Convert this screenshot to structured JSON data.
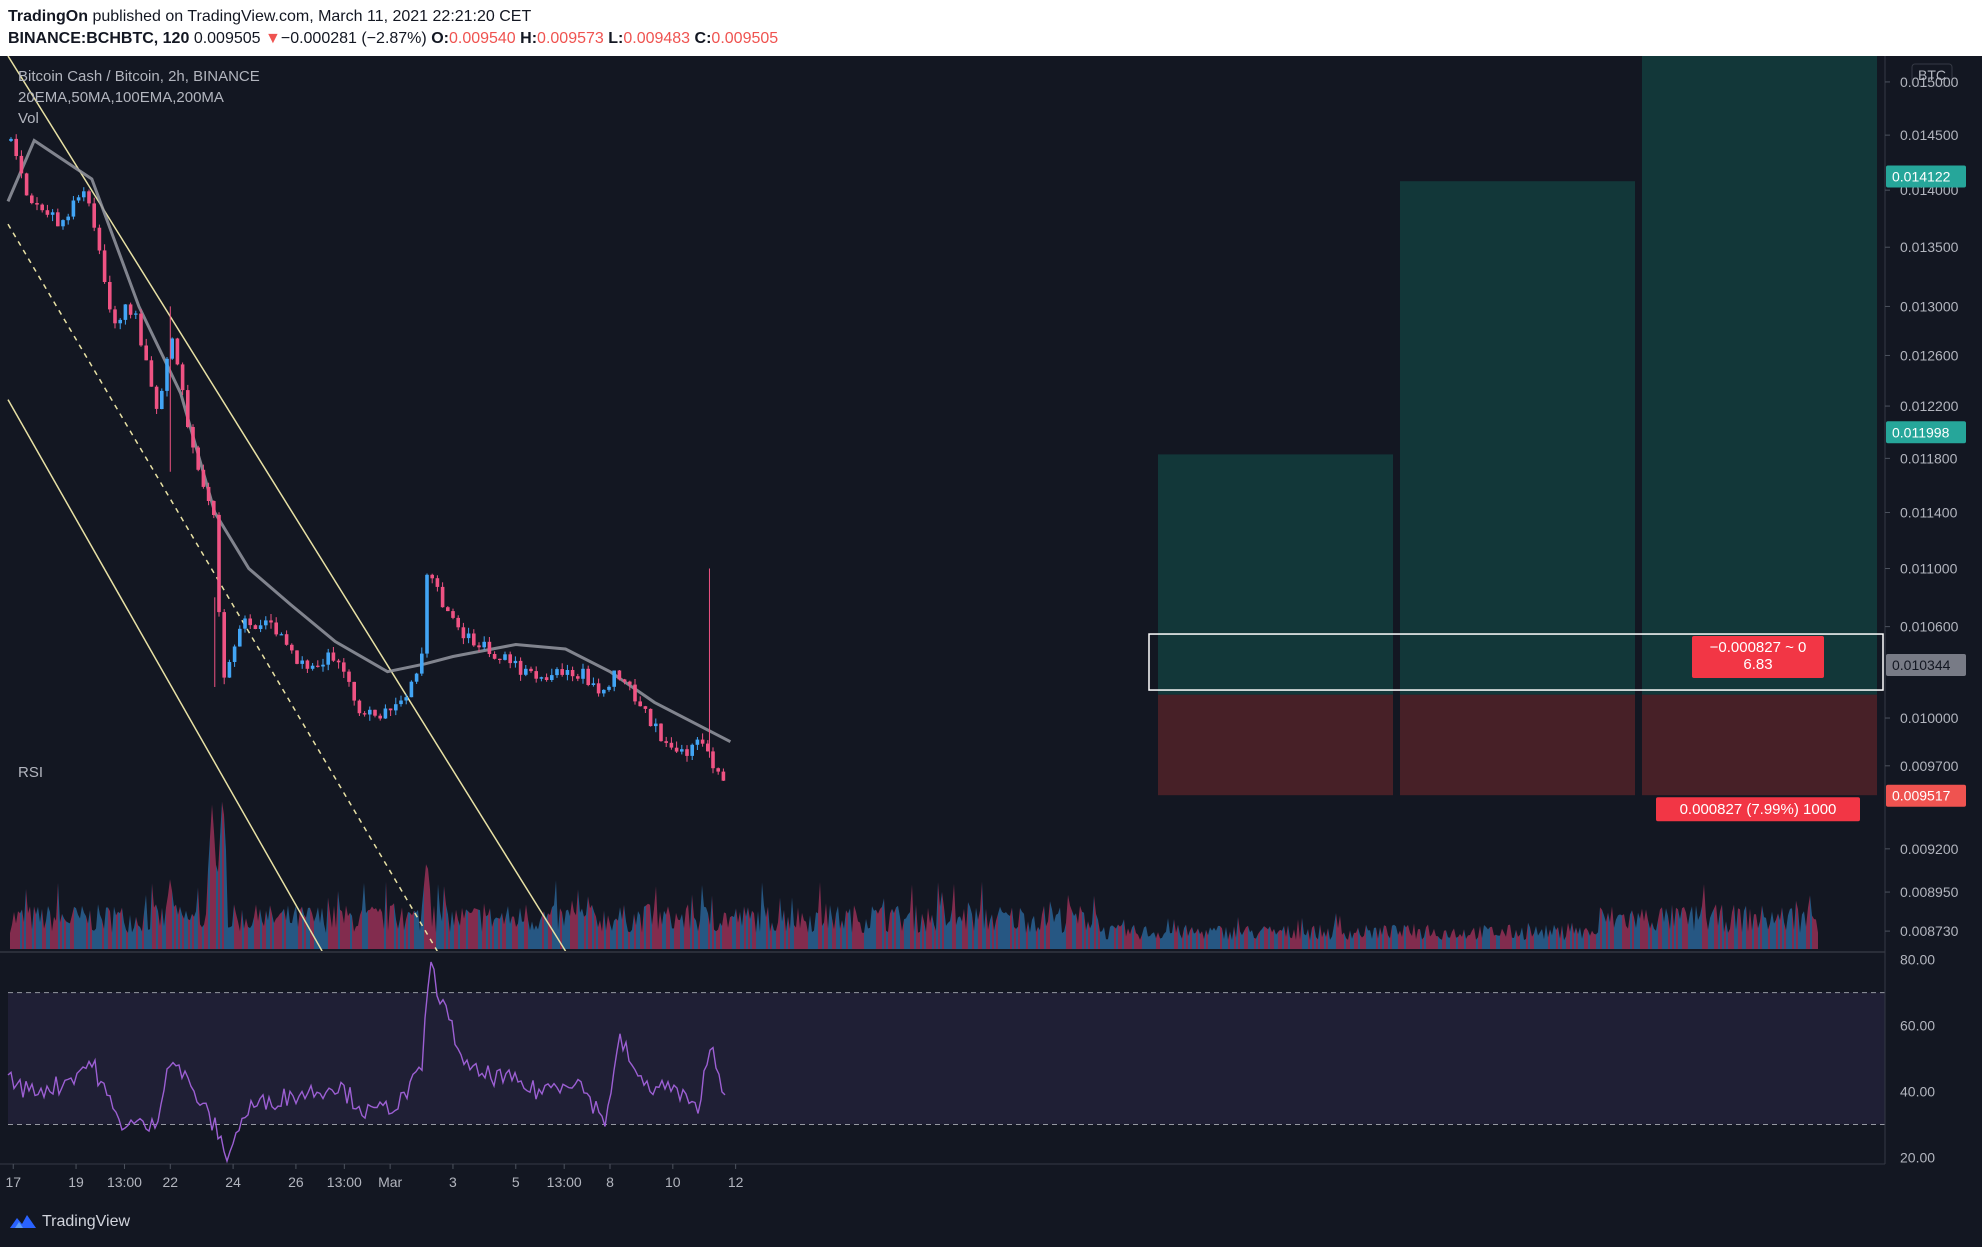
{
  "header": {
    "publisher": "TradingOn",
    "published_text": "published on TradingView.com, March 11, 2021 22:21:20 CET",
    "symbol": "BINANCE:BCHBTC, 120",
    "last_price": "0.009505",
    "change_arrow": "▼",
    "change": "−0.000281 (−2.87%)",
    "o_label": "O:",
    "o": "0.009540",
    "h_label": "H:",
    "h": "0.009573",
    "l_label": "L:",
    "l": "0.009483",
    "c_label": "C:",
    "c": "0.009505"
  },
  "legend": {
    "title": "Bitcoin Cash / Bitcoin, 2h, BINANCE",
    "indicators": "20EMA,50MA,100EMA,200MA",
    "volume": "Vol",
    "rsi": "RSI"
  },
  "price_axis": {
    "currency": "BTC",
    "ticks": [
      "0.015000",
      "0.014500",
      "0.014000",
      "0.013500",
      "0.013000",
      "0.012600",
      "0.012200",
      "0.011800",
      "0.011400",
      "0.011000",
      "0.010600",
      "0.010000",
      "0.009700",
      "0.009200",
      "0.008950",
      "0.008730"
    ],
    "badges": [
      {
        "label": "0.014122",
        "color": "#26a69a"
      },
      {
        "label": "0.011998",
        "color": "#26a69a"
      },
      {
        "label": "0.010344",
        "color": "#787b86"
      },
      {
        "label": "0.009517",
        "color": "#ef5350"
      }
    ]
  },
  "rsi_axis": {
    "ticks": [
      "80.00",
      "60.00",
      "40.00",
      "20.00"
    ]
  },
  "time_axis": {
    "ticks": [
      "17",
      "19",
      "13:00",
      "22",
      "24",
      "26",
      "13:00",
      "Mar",
      "3",
      "5",
      "13:00",
      "8",
      "10",
      "12"
    ]
  },
  "annotations": {
    "position_box": "−0.000827 ~ 0\n6.83",
    "stop_label": "0.000827 (7.99%) 1000"
  },
  "colors": {
    "background": "#131722",
    "up": "#42a5f5",
    "down": "#ef5383",
    "ma": "#9598a1",
    "target_zone": "#12393b",
    "stop_zone": "#4a2128",
    "rsi": "#9c5fd3",
    "channel": "#e8e1a4"
  },
  "chart_data": {
    "type": "candlestick",
    "title": "Bitcoin Cash / Bitcoin, 2h, BINANCE",
    "xlabel": "",
    "ylabel": "",
    "x_range": [
      "Feb 16",
      "Mar 12"
    ],
    "ylim": [
      0.00862,
      0.01525
    ],
    "scale": "log",
    "grid": false,
    "price_path": [
      {
        "date": "2021-02-16T20:00",
        "price": 0.0145
      },
      {
        "date": "2021-02-17T12:00",
        "price": 0.01395
      },
      {
        "date": "2021-02-18T12:00",
        "price": 0.0137
      },
      {
        "date": "2021-02-19T08:00",
        "price": 0.014
      },
      {
        "date": "2021-02-20T04:00",
        "price": 0.0129
      },
      {
        "date": "2021-02-20T20:00",
        "price": 0.013
      },
      {
        "date": "2021-02-21T14:00",
        "price": 0.0121
      },
      {
        "date": "2021-02-22T00:00",
        "price": 0.0128
      },
      {
        "date": "2021-02-22T18:00",
        "price": 0.0118
      },
      {
        "date": "2021-02-23T10:00",
        "price": 0.0114
      },
      {
        "date": "2021-02-23T16:00",
        "price": 0.0102
      },
      {
        "date": "2021-02-24T08:00",
        "price": 0.01065
      },
      {
        "date": "2021-02-25T06:00",
        "price": 0.0106
      },
      {
        "date": "2021-02-26T00:00",
        "price": 0.01035
      },
      {
        "date": "2021-02-27T04:00",
        "price": 0.0104
      },
      {
        "date": "2021-02-28T04:00",
        "price": 0.01
      },
      {
        "date": "2021-03-01T06:00",
        "price": 0.01005
      },
      {
        "date": "2021-03-02T00:00",
        "price": 0.0104
      },
      {
        "date": "2021-03-02T04:00",
        "price": 0.011
      },
      {
        "date": "2021-03-02T20:00",
        "price": 0.0107
      },
      {
        "date": "2021-03-03T04:00",
        "price": 0.01055
      },
      {
        "date": "2021-03-04T12:00",
        "price": 0.0104
      },
      {
        "date": "2021-03-05T16:00",
        "price": 0.01025
      },
      {
        "date": "2021-03-06T22:00",
        "price": 0.0103
      },
      {
        "date": "2021-03-07T16:00",
        "price": 0.0102
      },
      {
        "date": "2021-03-08T08:00",
        "price": 0.0103
      },
      {
        "date": "2021-03-09T08:00",
        "price": 0.00995
      },
      {
        "date": "2021-03-10T08:00",
        "price": 0.00975
      },
      {
        "date": "2021-03-10T22:00",
        "price": 0.00985
      },
      {
        "date": "2021-03-11T18:00",
        "price": 0.00952
      }
    ],
    "moving_average": [
      {
        "date": "2021-02-16T20:00",
        "value": 0.0139
      },
      {
        "date": "2021-02-17T16:00",
        "value": 0.01445
      },
      {
        "date": "2021-02-19T12:00",
        "value": 0.0141
      },
      {
        "date": "2021-02-21T00:00",
        "value": 0.013
      },
      {
        "date": "2021-02-22T08:00",
        "value": 0.0123
      },
      {
        "date": "2021-02-23T10:00",
        "value": 0.0114
      },
      {
        "date": "2021-02-24T12:00",
        "value": 0.011
      },
      {
        "date": "2021-02-25T20:00",
        "value": 0.01075
      },
      {
        "date": "2021-02-27T06:00",
        "value": 0.0105
      },
      {
        "date": "2021-02-28T22:00",
        "value": 0.0103
      },
      {
        "date": "2021-03-02T02:00",
        "value": 0.01035
      },
      {
        "date": "2021-03-03T00:00",
        "value": 0.0104
      },
      {
        "date": "2021-03-05T00:00",
        "value": 0.01048
      },
      {
        "date": "2021-03-06T14:00",
        "value": 0.01045
      },
      {
        "date": "2021-03-08T00:00",
        "value": 0.0103
      },
      {
        "date": "2021-03-09T10:00",
        "value": 0.0101
      },
      {
        "date": "2021-03-11T20:00",
        "value": 0.00985
      }
    ],
    "trendlines": [
      {
        "style": "solid",
        "from": {
          "date": "2021-02-16T20:00",
          "price": 0.01525
        },
        "to": {
          "date": "2021-03-06T14:00",
          "price": 0.00862
        }
      },
      {
        "style": "dashed",
        "from": {
          "date": "2021-02-16T20:00",
          "price": 0.0137
        },
        "to": {
          "date": "2021-03-02T12:00",
          "price": 0.00862
        }
      },
      {
        "style": "solid",
        "from": {
          "date": "2021-02-16T20:00",
          "price": 0.01225
        },
        "to": {
          "date": "2021-02-26T20:00",
          "price": 0.00862
        }
      }
    ],
    "positions": [
      {
        "entry": 0.01015,
        "target": 0.01183,
        "stop": 0.00952
      },
      {
        "entry": 0.01015,
        "target": 0.01408,
        "stop": 0.00952
      },
      {
        "entry": 0.01015,
        "target": 0.01525,
        "stop": 0.00952
      }
    ],
    "range_box": {
      "top": 0.01055,
      "bottom": 0.01018
    },
    "volume_spikes": [
      {
        "date": "2021-02-23T08:00",
        "relative": 0.92
      },
      {
        "date": "2021-02-23T16:00",
        "relative": 0.99
      },
      {
        "date": "2021-02-22T00:00",
        "relative": 0.45
      },
      {
        "date": "2021-03-02T04:00",
        "relative": 0.58
      }
    ],
    "rsi": {
      "levels": [
        70,
        30
      ],
      "ylim": [
        18,
        82
      ],
      "points": [
        {
          "date": "2021-02-16T20:00",
          "value": 44
        },
        {
          "date": "2021-02-17T12:00",
          "value": 40
        },
        {
          "date": "2021-02-18T12:00",
          "value": 42
        },
        {
          "date": "2021-02-19T12:00",
          "value": 49
        },
        {
          "date": "2021-02-20T08:00",
          "value": 31
        },
        {
          "date": "2021-02-21T12:00",
          "value": 29
        },
        {
          "date": "2021-02-22T00:00",
          "value": 51
        },
        {
          "date": "2021-02-22T18:00",
          "value": 40
        },
        {
          "date": "2021-02-23T12:00",
          "value": 28
        },
        {
          "date": "2021-02-23T18:00",
          "value": 20
        },
        {
          "date": "2021-02-24T12:00",
          "value": 35
        },
        {
          "date": "2021-02-25T12:00",
          "value": 38
        },
        {
          "date": "2021-02-26T12:00",
          "value": 40
        },
        {
          "date": "2021-02-27T08:00",
          "value": 42
        },
        {
          "date": "2021-02-28T08:00",
          "value": 33
        },
        {
          "date": "2021-03-01T08:00",
          "value": 37
        },
        {
          "date": "2021-03-02T00:00",
          "value": 46
        },
        {
          "date": "2021-03-02T06:00",
          "value": 79
        },
        {
          "date": "2021-03-02T20:00",
          "value": 62
        },
        {
          "date": "2021-03-03T12:00",
          "value": 46
        },
        {
          "date": "2021-03-04T16:00",
          "value": 44
        },
        {
          "date": "2021-03-05T16:00",
          "value": 40
        },
        {
          "date": "2021-03-06T22:00",
          "value": 44
        },
        {
          "date": "2021-03-07T20:00",
          "value": 31
        },
        {
          "date": "2021-03-08T08:00",
          "value": 56
        },
        {
          "date": "2021-03-09T00:00",
          "value": 42
        },
        {
          "date": "2021-03-10T00:00",
          "value": 41
        },
        {
          "date": "2021-03-10T18:00",
          "value": 34
        },
        {
          "date": "2021-03-11T06:00",
          "value": 55
        },
        {
          "date": "2021-03-11T18:00",
          "value": 35
        }
      ]
    }
  }
}
